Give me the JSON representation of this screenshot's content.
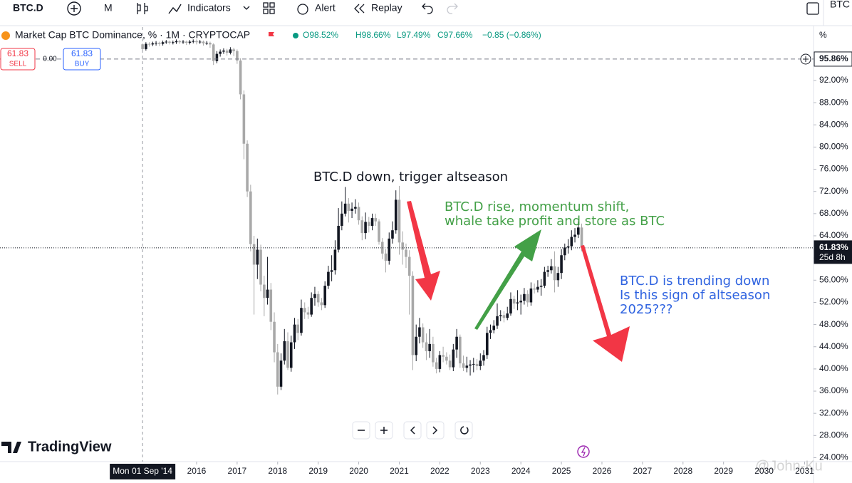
{
  "toolbar": {
    "symbol": "BTC.D",
    "interval": "M",
    "indicators": "Indicators",
    "alert": "Alert",
    "replay": "Replay",
    "symbol_right": "BTC"
  },
  "trade": {
    "sell_price": "61.83",
    "sell": "SELL",
    "spread": "0.00",
    "buy_price": "61.83",
    "buy": "BUY"
  },
  "chart_data": {
    "type": "candlestick",
    "title": "Market Cap BTC Dominance, % · 1M · CRYPTOCAP",
    "readout": [
      "O98.52%",
      "H98.66%",
      "L97.49%",
      "C97.66%",
      "−0.85 (−0.86%)"
    ],
    "readout_color": "#089981",
    "scale_unit": "%",
    "x": [
      2014.667,
      2014.75,
      2014.833,
      2014.917,
      2015,
      2015.083,
      2015.167,
      2015.25,
      2015.333,
      2015.417,
      2015.5,
      2015.583,
      2015.667,
      2015.75,
      2015.833,
      2015.917,
      2016,
      2016.083,
      2016.167,
      2016.25,
      2016.333,
      2016.417,
      2016.5,
      2016.583,
      2016.667,
      2016.75,
      2016.833,
      2016.917,
      2017,
      2017.083,
      2017.167,
      2017.25,
      2017.333,
      2017.417,
      2017.5,
      2017.583,
      2017.667,
      2017.75,
      2017.833,
      2017.917,
      2018,
      2018.083,
      2018.167,
      2018.25,
      2018.333,
      2018.417,
      2018.5,
      2018.583,
      2018.667,
      2018.75,
      2018.833,
      2018.917,
      2019,
      2019.083,
      2019.167,
      2019.25,
      2019.333,
      2019.417,
      2019.5,
      2019.583,
      2019.667,
      2019.75,
      2019.833,
      2019.917,
      2020,
      2020.083,
      2020.167,
      2020.25,
      2020.333,
      2020.417,
      2020.5,
      2020.583,
      2020.667,
      2020.75,
      2020.833,
      2020.917,
      2021,
      2021.083,
      2021.167,
      2021.25,
      2021.333,
      2021.417,
      2021.5,
      2021.583,
      2021.667,
      2021.75,
      2021.833,
      2021.917,
      2022,
      2022.083,
      2022.167,
      2022.25,
      2022.333,
      2022.417,
      2022.5,
      2022.583,
      2022.667,
      2022.75,
      2022.833,
      2022.917,
      2023,
      2023.083,
      2023.167,
      2023.25,
      2023.333,
      2023.417,
      2023.5,
      2023.583,
      2023.667,
      2023.75,
      2023.833,
      2023.917,
      2024,
      2024.083,
      2024.167,
      2024.25,
      2024.333,
      2024.417,
      2024.5,
      2024.583,
      2024.667,
      2024.75,
      2024.833,
      2024.917,
      2025,
      2025.083,
      2025.167,
      2025.25,
      2025.333,
      2025.417,
      2025.5
    ],
    "series": [
      {
        "up_color": "#131722",
        "down_color": "#a8a8a8",
        "open": [
          98.52,
          97.66,
          98.6,
          98.5,
          98.7,
          98.8,
          98.6,
          98.9,
          99.0,
          98.8,
          98.9,
          99.1,
          98.9,
          99.0,
          98.8,
          99.0,
          99.1,
          98.9,
          99.0,
          98.7,
          98.8,
          98.5,
          95.5,
          96.8,
          97.2,
          97.4,
          97.0,
          97.6,
          97.3,
          95.6,
          89.5,
          80.6,
          72.0,
          62.5,
          58.8,
          61.5,
          55.2,
          52.8,
          54.3,
          48.5,
          43.0,
          36.8,
          41.5,
          45.0,
          40.2,
          44.8,
          48.0,
          46.5,
          51.0,
          50.2,
          49.8,
          52.8,
          53.5,
          52.0,
          51.5,
          55.0,
          57.5,
          57.8,
          61.5,
          65.8,
          68.0,
          69.8,
          68.5,
          68.9,
          69.2,
          66.8,
          64.5,
          66.5,
          65.8,
          67.2,
          66.6,
          62.9,
          60.8,
          59.5,
          63.5,
          65.0,
          70.5,
          62.8,
          61.5,
          60.2,
          56.8,
          42.5,
          45.8,
          47.5,
          44.8,
          43.2,
          44.5,
          41.2,
          40.0,
          42.5,
          42.2,
          41.5,
          40.3,
          43.5,
          45.8,
          41.0,
          40.2,
          40.6,
          40.8,
          40.9,
          40.5,
          41.5,
          42.5,
          46.5,
          47.0,
          47.8,
          49.5,
          49.7,
          49.2,
          50.0,
          52.6,
          51.8,
          52.0,
          52.3,
          53.5,
          52.0,
          54.5,
          54.3,
          54.8,
          55.0,
          57.5,
          57.8,
          58.5,
          56.0,
          57.3,
          60.5,
          61.9,
          62.1,
          63.8,
          64.2,
          65.5
        ],
        "high": [
          98.66,
          98.9,
          98.9,
          99.0,
          99.1,
          99.0,
          99.2,
          99.3,
          99.2,
          99.2,
          99.4,
          99.3,
          99.3,
          99.2,
          99.3,
          99.4,
          99.4,
          99.3,
          99.2,
          99.1,
          99.0,
          98.7,
          97.3,
          97.6,
          97.8,
          97.7,
          98.0,
          97.9,
          97.6,
          96.0,
          90.2,
          81.2,
          73.2,
          64.0,
          63.5,
          62.4,
          56.8,
          60.2,
          55.5,
          50.2,
          44.5,
          42.8,
          47.2,
          46.6,
          46.0,
          49.2,
          49.0,
          52.5,
          52.0,
          51.2,
          53.8,
          54.8,
          54.0,
          52.8,
          55.8,
          58.6,
          60.5,
          63.2,
          69.0,
          70.2,
          72.8,
          70.8,
          70.0,
          70.6,
          70.0,
          67.5,
          68.2,
          67.4,
          68.0,
          68.0,
          67.0,
          63.6,
          61.6,
          64.6,
          66.6,
          72.2,
          73.0,
          64.8,
          62.6,
          61.4,
          57.6,
          48.0,
          49.2,
          48.2,
          46.4,
          47.2,
          45.8,
          42.0,
          43.2,
          44.0,
          43.0,
          42.6,
          44.5,
          47.2,
          46.2,
          42.4,
          42.2,
          41.6,
          42.0,
          41.8,
          42.8,
          43.4,
          47.6,
          48.0,
          48.8,
          51.8,
          50.6,
          50.4,
          51.2,
          53.8,
          53.2,
          54.2,
          53.4,
          54.6,
          54.2,
          55.6,
          55.4,
          56.0,
          56.2,
          58.4,
          58.6,
          59.8,
          61.2,
          58.4,
          61.6,
          62.6,
          63.4,
          65.0,
          65.4,
          66.6,
          66.2
        ],
        "low": [
          97.49,
          97.4,
          98.1,
          98.2,
          98.3,
          98.2,
          98.3,
          98.6,
          98.5,
          98.5,
          98.6,
          98.6,
          98.6,
          98.4,
          98.5,
          98.7,
          98.5,
          98.6,
          98.3,
          98.4,
          97.9,
          94.8,
          95.1,
          96.3,
          96.8,
          96.5,
          96.7,
          96.4,
          95.0,
          88.6,
          77.8,
          71.0,
          61.2,
          49.8,
          56.2,
          54.0,
          49.5,
          51.6,
          47.0,
          41.2,
          35.4,
          36.2,
          40.8,
          39.8,
          39.5,
          43.6,
          45.2,
          46.0,
          49.0,
          49.0,
          49.4,
          51.4,
          51.2,
          50.6,
          51.0,
          54.4,
          55.8,
          57.0,
          61.0,
          65.0,
          67.5,
          66.4,
          67.2,
          68.0,
          66.0,
          63.2,
          63.4,
          64.6,
          65.0,
          65.8,
          62.4,
          59.8,
          57.4,
          58.8,
          62.6,
          64.4,
          60.6,
          58.8,
          58.2,
          49.8,
          39.8,
          41.4,
          44.6,
          43.8,
          41.6,
          42.0,
          40.4,
          39.2,
          39.4,
          41.2,
          40.8,
          39.8,
          39.6,
          42.0,
          40.2,
          39.6,
          39.4,
          38.8,
          39.4,
          39.8,
          39.8,
          40.6,
          41.8,
          45.4,
          46.4,
          47.2,
          48.6,
          48.4,
          48.8,
          49.6,
          50.8,
          50.6,
          49.8,
          51.6,
          51.2,
          51.4,
          53.6,
          53.8,
          53.2,
          54.6,
          56.6,
          57.2,
          53.8,
          54.8,
          56.2,
          59.6,
          60.8,
          61.4,
          62.8,
          63.6,
          61.2
        ],
        "close": [
          97.66,
          98.6,
          98.5,
          98.7,
          98.8,
          98.6,
          98.9,
          99.0,
          98.8,
          98.9,
          99.1,
          98.9,
          99.0,
          98.8,
          99.0,
          99.1,
          98.9,
          99.0,
          98.7,
          98.8,
          98.5,
          95.5,
          96.8,
          97.2,
          97.4,
          97.0,
          97.6,
          97.3,
          95.6,
          89.5,
          80.6,
          72.0,
          62.5,
          58.8,
          61.5,
          55.2,
          52.8,
          54.3,
          48.5,
          43.0,
          36.8,
          41.5,
          45.0,
          40.2,
          44.8,
          48.0,
          46.5,
          51.0,
          50.2,
          49.8,
          52.8,
          53.5,
          52.0,
          51.5,
          55.0,
          57.5,
          57.8,
          61.5,
          65.8,
          68.0,
          69.8,
          68.5,
          68.9,
          69.2,
          66.8,
          64.5,
          66.5,
          65.8,
          67.2,
          66.6,
          62.9,
          60.8,
          59.5,
          63.5,
          65.0,
          70.5,
          62.8,
          61.5,
          60.2,
          56.8,
          42.5,
          45.8,
          47.5,
          44.8,
          43.2,
          44.5,
          41.2,
          40.0,
          42.5,
          42.2,
          41.5,
          40.3,
          43.5,
          45.8,
          41.0,
          40.2,
          40.6,
          40.8,
          40.9,
          40.5,
          41.5,
          42.5,
          46.5,
          47.0,
          47.8,
          49.5,
          49.7,
          49.2,
          50.0,
          52.6,
          51.8,
          52.0,
          52.3,
          53.5,
          52.0,
          54.5,
          54.3,
          54.8,
          55.0,
          57.5,
          57.8,
          58.5,
          56.0,
          57.3,
          60.5,
          61.9,
          62.1,
          63.8,
          64.2,
          65.5,
          61.83
        ]
      }
    ],
    "xlim": [
      2011.15,
      2031.22
    ],
    "xticks": [
      2016,
      2017,
      2018,
      2019,
      2020,
      2021,
      2022,
      2023,
      2024,
      2025,
      2026,
      2027,
      2028,
      2029,
      2030,
      2031
    ],
    "ylim": [
      23.29,
      101.63
    ],
    "yticks": [
      {
        "value": 24,
        "label": "24.00%"
      },
      {
        "value": 28,
        "label": "28.00%"
      },
      {
        "value": 32,
        "label": "32.00%"
      },
      {
        "value": 36,
        "label": "36.00%"
      },
      {
        "value": 40,
        "label": "40.00%"
      },
      {
        "value": 44,
        "label": "44.00%"
      },
      {
        "value": 48,
        "label": "48.00%"
      },
      {
        "value": 52,
        "label": "52.00%"
      },
      {
        "value": 56,
        "label": "56.00%"
      },
      {
        "value": 60,
        "label": "60.00%"
      },
      {
        "value": 64,
        "label": "64.00%"
      },
      {
        "value": 68,
        "label": "68.00%"
      },
      {
        "value": 72,
        "label": "72.00%"
      },
      {
        "value": 76,
        "label": "76.00%"
      },
      {
        "value": 80,
        "label": "80.00%"
      },
      {
        "value": 84,
        "label": "84.00%"
      },
      {
        "value": 88,
        "label": "88.00%"
      },
      {
        "value": 92,
        "label": "92.00%"
      }
    ],
    "hlines": [
      {
        "value": 95.86,
        "label": "95.86%",
        "style": "dashed"
      },
      {
        "value": 61.83,
        "label": "61.83%",
        "style": "dotted",
        "countdown": "25d 8h"
      }
    ],
    "crosshair": {
      "value": 2014.667,
      "label": "Mon 01 Sep '14"
    },
    "annotations": [
      {
        "lines": [
          "BTC.D down, trigger altseason"
        ],
        "color": "#131722"
      },
      {
        "lines": [
          "BTC.D rise, momentum shift,",
          "whale take profit and store as BTC"
        ],
        "color": "#43a047"
      },
      {
        "lines": [
          "BTC.D is trending down",
          "Is this sign of altseason",
          "2025???"
        ],
        "color": "#2f63e0"
      }
    ],
    "brand": "TradingView",
    "watermark": "@John-Ku"
  }
}
